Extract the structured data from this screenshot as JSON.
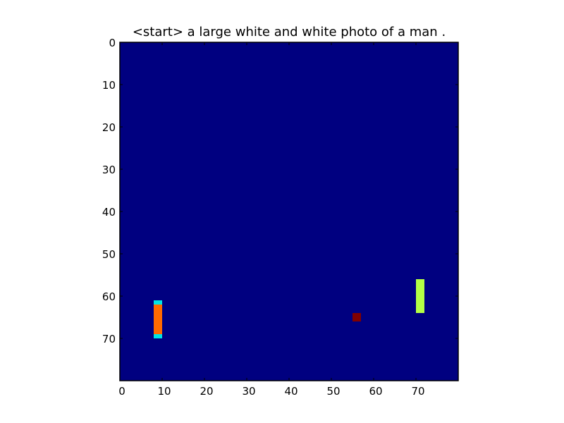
{
  "chart_data": {
    "type": "heatmap",
    "title": "<start> a large white and white photo of a man .",
    "xlabel": "",
    "ylabel": "",
    "xlim": [
      0,
      80
    ],
    "ylim": [
      80,
      0
    ],
    "xticks": [
      "0",
      "10",
      "20",
      "30",
      "40",
      "50",
      "60",
      "70"
    ],
    "yticks": [
      "0",
      "10",
      "20",
      "30",
      "40",
      "50",
      "60",
      "70"
    ],
    "background_color": "#000080",
    "grid": false,
    "legend": "none",
    "cells": [
      {
        "x": [
          8,
          10
        ],
        "y": [
          61,
          62
        ],
        "color": "#00e5e5"
      },
      {
        "x": [
          8,
          10
        ],
        "y": [
          62,
          69
        ],
        "color": "#ff6a00"
      },
      {
        "x": [
          8,
          10
        ],
        "y": [
          69,
          70
        ],
        "color": "#00e5e5"
      },
      {
        "x": [
          55,
          57
        ],
        "y": [
          64,
          66
        ],
        "color": "#800000"
      },
      {
        "x": [
          70,
          72
        ],
        "y": [
          56,
          64
        ],
        "color": "#b4ff45"
      }
    ]
  }
}
